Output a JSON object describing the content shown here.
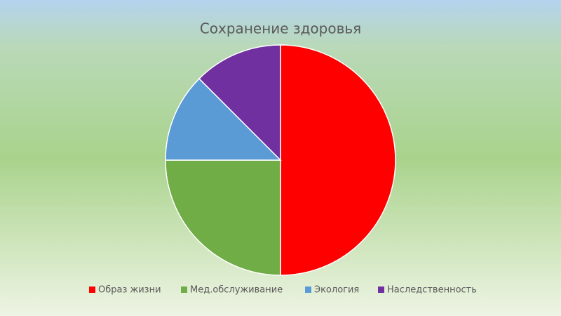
{
  "chart_data": {
    "type": "pie",
    "title": "Сохранение здоровья",
    "categories": [
      "Образ жизни",
      "Мед.обслуживание",
      "Экология",
      "Наследственность"
    ],
    "values": [
      50,
      25,
      12.5,
      12.5
    ],
    "colors": [
      "#ff0000",
      "#70ad47",
      "#5b9bd5",
      "#7030a0"
    ],
    "legend": "bottom"
  }
}
